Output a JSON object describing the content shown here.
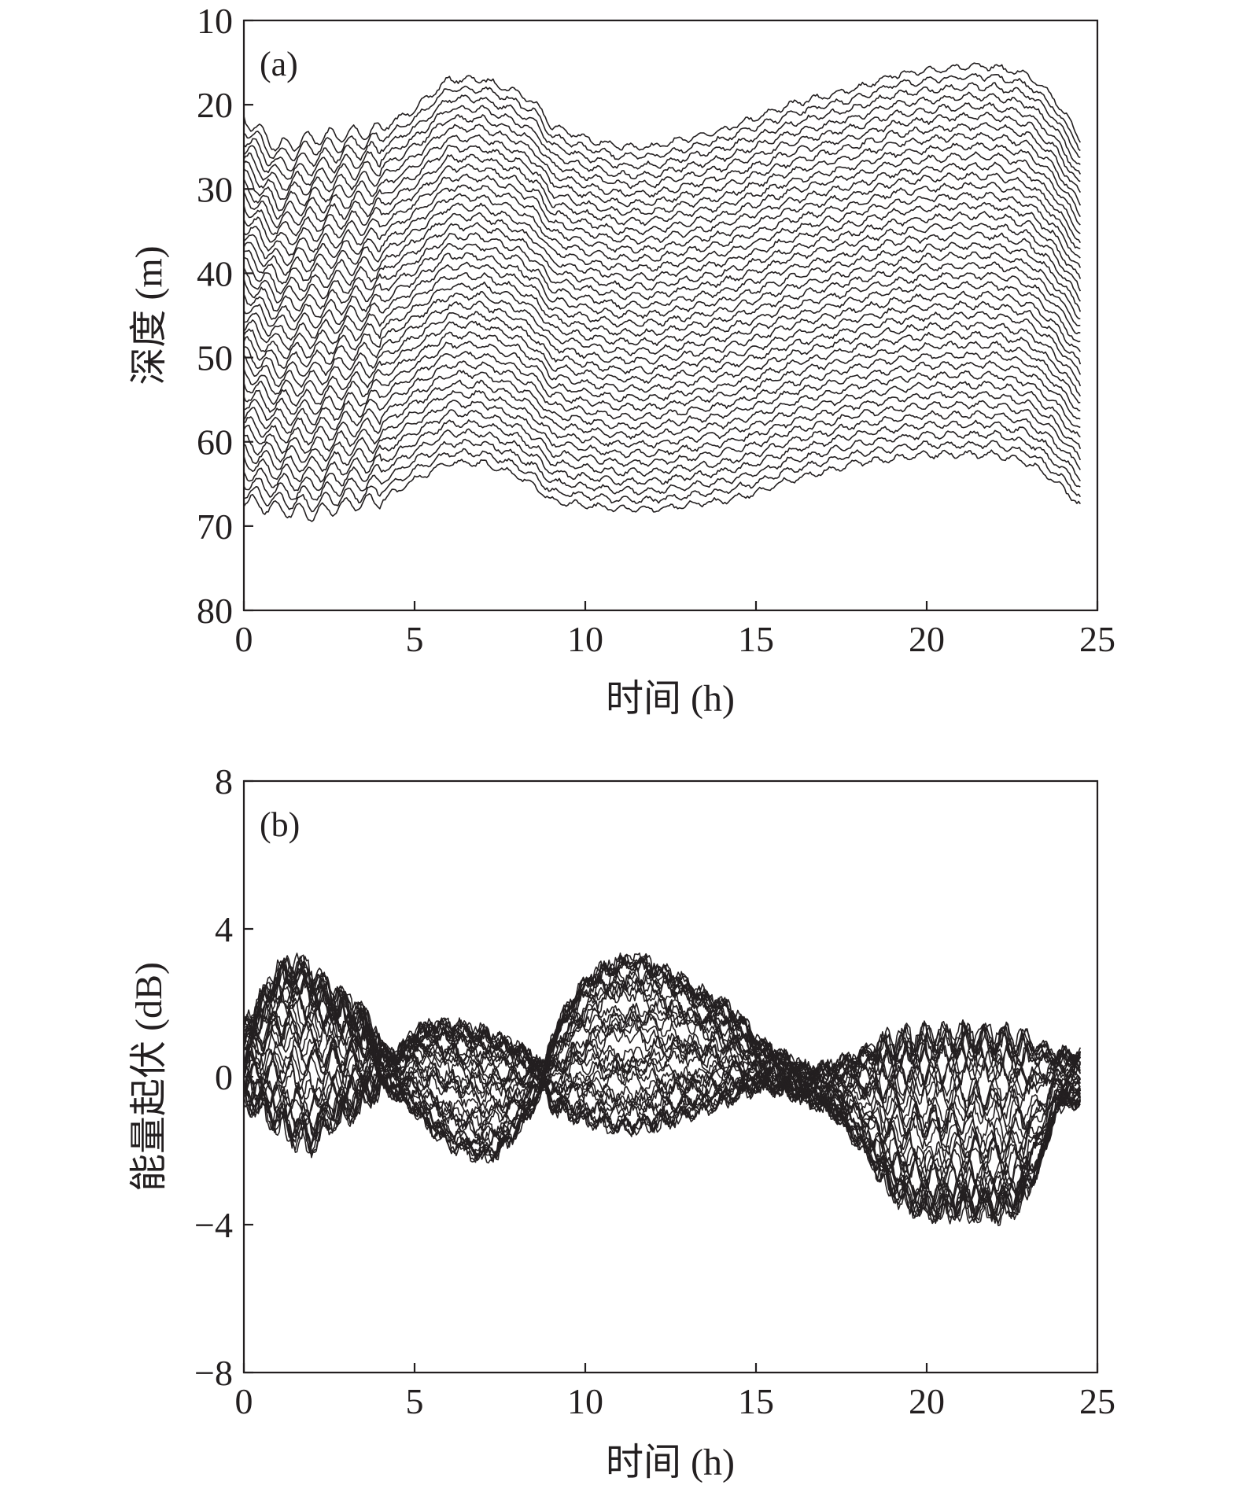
{
  "chart_data": [
    {
      "type": "line",
      "panel_label": "(a)",
      "xlabel": "时间 (h)",
      "ylabel": "深度 (m)",
      "xlim": [
        0,
        25
      ],
      "ylim": [
        10,
        80
      ],
      "y_inverted": true,
      "xticks": [
        0,
        5,
        10,
        15,
        20,
        25
      ],
      "yticks": [
        10,
        20,
        30,
        40,
        50,
        60,
        70,
        80
      ],
      "grid": false,
      "legend": "none",
      "line_color": "#231f20",
      "series_count": 40,
      "series_time_h": [
        0.0,
        1.0,
        2.0,
        3.0,
        4.0,
        5.0,
        6.0,
        7.0,
        8.0,
        8.6,
        9.0,
        10.0,
        11.0,
        12.0,
        13.0,
        14.0,
        15.0,
        16.0,
        17.0,
        18.0,
        19.0,
        20.0,
        21.0,
        22.0,
        23.0,
        23.7,
        24.5
      ],
      "series_top_depth_m": [
        21.5,
        25.0,
        24.0,
        23.5,
        23.0,
        20.5,
        17.0,
        17.0,
        18.5,
        20.0,
        22.5,
        24.0,
        25.0,
        25.0,
        24.0,
        23.0,
        21.5,
        20.0,
        19.0,
        18.0,
        16.5,
        16.0,
        15.5,
        15.5,
        16.5,
        19.0,
        24.0
      ],
      "series_bottom_depth_m": [
        67.0,
        68.0,
        68.5,
        67.5,
        67.0,
        64.5,
        62.5,
        62.5,
        64.0,
        65.5,
        67.0,
        67.5,
        68.0,
        68.0,
        67.5,
        67.0,
        66.0,
        64.5,
        63.5,
        62.5,
        62.0,
        61.5,
        61.5,
        61.5,
        62.5,
        64.5,
        67.5
      ]
    },
    {
      "type": "line",
      "panel_label": "(b)",
      "xlabel": "时间 (h)",
      "ylabel": "能量起伏 (dB)",
      "xlim": [
        0,
        25
      ],
      "ylim": [
        -8,
        8
      ],
      "xticks": [
        0,
        5,
        10,
        15,
        20,
        25
      ],
      "yticks": [
        8,
        4,
        0,
        -4,
        -8
      ],
      "ytick_labels": [
        "8",
        "4",
        "0",
        "−4",
        "−8"
      ],
      "grid": false,
      "legend": "none",
      "line_color": "#231f20",
      "series_count": 40,
      "series_time_h": [
        0.0,
        0.5,
        1.0,
        1.5,
        2.0,
        2.5,
        3.0,
        3.5,
        4.0,
        4.5,
        5.0,
        5.5,
        6.0,
        6.5,
        7.0,
        7.5,
        8.0,
        8.5,
        8.8,
        9.0,
        9.5,
        10.0,
        10.5,
        11.0,
        11.5,
        12.0,
        12.5,
        13.0,
        13.5,
        14.0,
        14.5,
        15.0,
        15.5,
        16.0,
        16.5,
        17.0,
        17.5,
        18.0,
        18.5,
        19.0,
        19.5,
        20.0,
        20.5,
        21.0,
        21.5,
        22.0,
        22.5,
        23.0,
        23.5,
        23.8,
        24.5
      ],
      "series_upper_envelope_db": [
        1.2,
        2.0,
        2.8,
        3.0,
        2.7,
        2.3,
        2.0,
        1.6,
        0.8,
        0.6,
        1.2,
        1.4,
        1.4,
        1.3,
        1.2,
        1.0,
        0.8,
        0.5,
        0.2,
        1.0,
        1.9,
        2.6,
        2.9,
        3.1,
        3.2,
        3.0,
        2.8,
        2.5,
        2.2,
        2.0,
        1.6,
        1.0,
        0.7,
        0.4,
        0.2,
        0.2,
        0.4,
        0.6,
        0.8,
        0.9,
        1.0,
        1.1,
        1.1,
        1.1,
        1.1,
        1.1,
        1.0,
        0.9,
        0.7,
        0.6,
        0.6
      ],
      "series_lower_envelope_db": [
        -0.6,
        -0.8,
        -1.2,
        -1.6,
        -1.8,
        -1.2,
        -1.0,
        -0.6,
        -0.2,
        -0.5,
        -0.9,
        -1.4,
        -1.8,
        -2.0,
        -2.2,
        -2.0,
        -1.5,
        -0.8,
        -0.2,
        -0.8,
        -1.0,
        -1.2,
        -1.3,
        -1.4,
        -1.4,
        -1.3,
        -1.2,
        -1.0,
        -0.9,
        -0.7,
        -0.5,
        -0.3,
        -0.3,
        -0.4,
        -0.6,
        -0.8,
        -1.2,
        -1.8,
        -2.4,
        -3.0,
        -3.4,
        -3.6,
        -3.6,
        -3.5,
        -3.6,
        -3.6,
        -3.5,
        -3.0,
        -2.0,
        -0.8,
        -0.6
      ]
    }
  ]
}
